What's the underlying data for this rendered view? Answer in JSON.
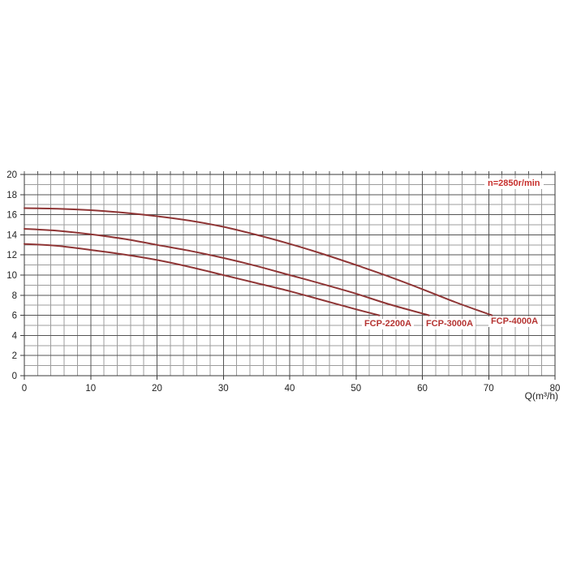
{
  "chart_data": {
    "type": "line",
    "title": "",
    "annotation": "n=2850r/min",
    "xlabel": "Q(m³/h)",
    "ylabel": "",
    "xlim": [
      0,
      80
    ],
    "ylim": [
      0,
      20
    ],
    "x_ticks": [
      0,
      10,
      20,
      30,
      40,
      50,
      60,
      70,
      80
    ],
    "y_ticks": [
      0,
      2,
      4,
      6,
      8,
      10,
      12,
      14,
      16,
      18,
      20
    ],
    "x_minor_step": 2,
    "x_major_step": 10,
    "y_minor_step": 1,
    "y_major_step": 2,
    "grid": "on",
    "legend_position": "labels-at-curve-ends",
    "series": [
      {
        "name": "FCP-2200A",
        "x": [
          0,
          5,
          10,
          15,
          20,
          25,
          30,
          35,
          40,
          45,
          50,
          53.5
        ],
        "y": [
          13.1,
          12.9,
          12.5,
          12.05,
          11.5,
          10.8,
          10.0,
          9.2,
          8.4,
          7.5,
          6.6,
          6.0
        ]
      },
      {
        "name": "FCP-3000A",
        "x": [
          0,
          5,
          10,
          15,
          20,
          25,
          30,
          35,
          40,
          45,
          50,
          55,
          61
        ],
        "y": [
          14.6,
          14.4,
          14.05,
          13.6,
          13.0,
          12.4,
          11.7,
          10.9,
          10.0,
          9.1,
          8.15,
          7.1,
          6.0
        ]
      },
      {
        "name": "FCP-4000A",
        "x": [
          0,
          5,
          10,
          15,
          20,
          25,
          30,
          35,
          40,
          45,
          50,
          55,
          60,
          65,
          70.5
        ],
        "y": [
          16.65,
          16.6,
          16.45,
          16.2,
          15.85,
          15.4,
          14.8,
          14.0,
          13.1,
          12.1,
          11.0,
          9.85,
          8.6,
          7.3,
          6.0
        ]
      }
    ],
    "colors": {
      "curve": "#8f3535",
      "series_label": "#b53432",
      "annotation": "#c72f2c",
      "grid_minor": "#9c9c9c",
      "grid_major": "#545454",
      "axis_border": "#3a3a3a",
      "tick_text": "#222222",
      "background": "#ffffff"
    }
  }
}
